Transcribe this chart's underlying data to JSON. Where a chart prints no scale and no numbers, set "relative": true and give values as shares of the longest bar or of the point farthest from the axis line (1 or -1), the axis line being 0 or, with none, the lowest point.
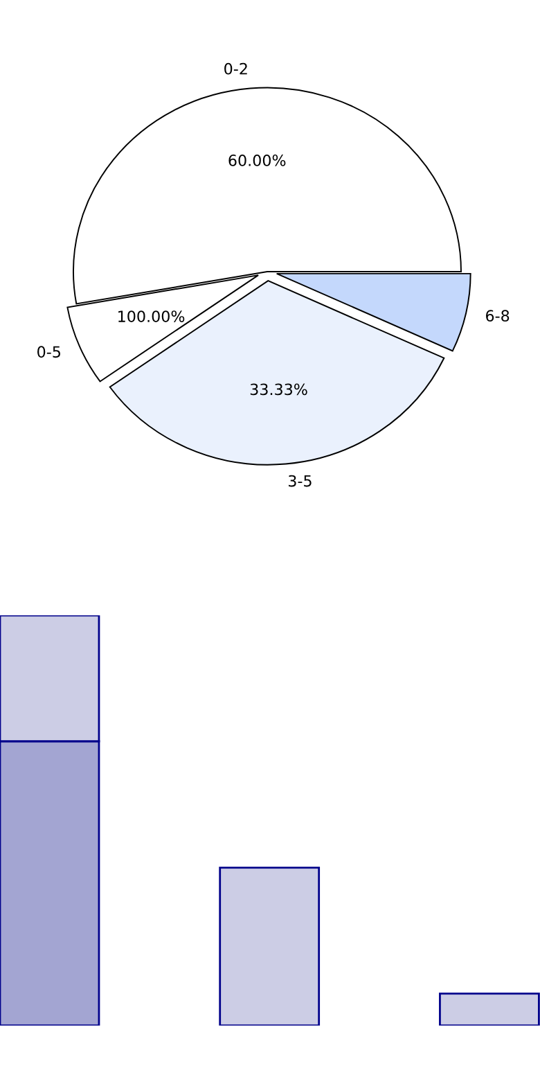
{
  "chart_data": [
    {
      "type": "pie",
      "categories": [
        "0-2",
        "0-5",
        "3-5",
        "6-8"
      ],
      "values": [
        52.8,
        7.0,
        33.3,
        6.9
      ],
      "colors": [
        "#ffffff",
        "#ffffff",
        "#eaf1fd",
        "#c4d8fc"
      ],
      "annotations": [
        "60.00%",
        "100.00%",
        "33.33%"
      ]
    },
    {
      "type": "bar",
      "relative": true,
      "stacked": true,
      "categories": [
        null,
        null,
        null
      ],
      "series": [
        {
          "color": "#a3a5d2",
          "values": [
            0.693,
            0,
            0
          ]
        },
        {
          "color": "#cccde5",
          "values": [
            0.307,
            0.385,
            0.078
          ]
        }
      ]
    }
  ]
}
